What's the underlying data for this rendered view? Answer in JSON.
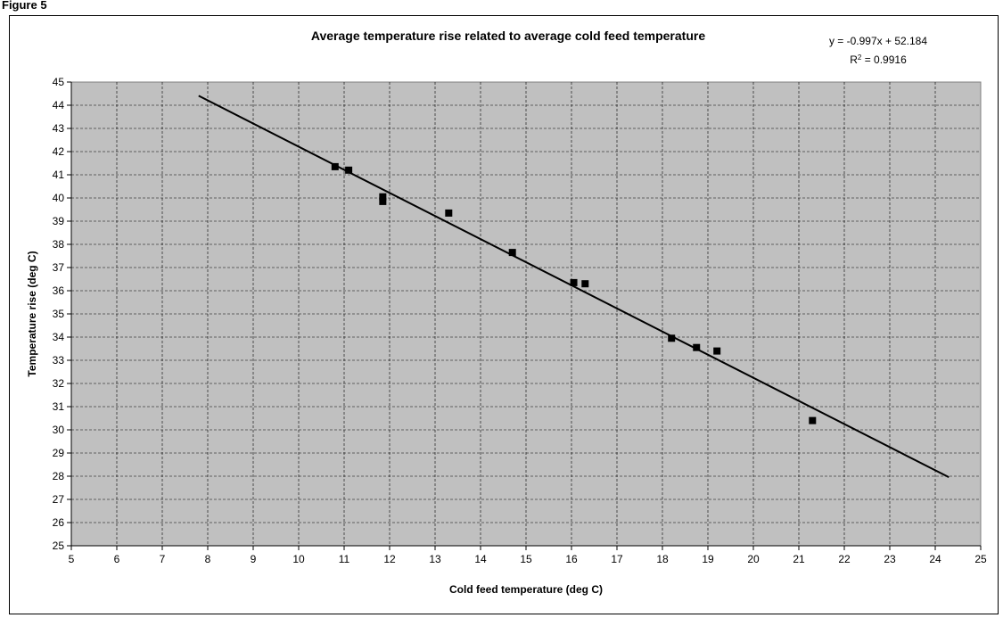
{
  "figure": {
    "label": "Figure 5"
  },
  "chart_data": {
    "type": "scatter",
    "title": "Average temperature rise related to average cold feed temperature",
    "xlabel": "Cold feed temperature (deg C)",
    "ylabel": "Temperature rise (deg C)",
    "xlim": [
      5,
      25
    ],
    "ylim": [
      25,
      45
    ],
    "x_ticks": [
      5,
      6,
      7,
      8,
      9,
      10,
      11,
      12,
      13,
      14,
      15,
      16,
      17,
      18,
      19,
      20,
      21,
      22,
      23,
      24,
      25
    ],
    "y_ticks": [
      25,
      26,
      27,
      28,
      29,
      30,
      31,
      32,
      33,
      34,
      35,
      36,
      37,
      38,
      39,
      40,
      41,
      42,
      43,
      44,
      45
    ],
    "grid": true,
    "plot_background": "#c0c0c0",
    "gridline_style": "dashed",
    "series": [
      {
        "marker": "square",
        "color": "#000000",
        "x": [
          10.8,
          11.1,
          11.85,
          11.85,
          13.3,
          14.7,
          16.05,
          16.3,
          18.2,
          18.75,
          19.2,
          21.3
        ],
        "y": [
          41.35,
          41.2,
          40.05,
          39.85,
          39.35,
          37.65,
          36.35,
          36.3,
          33.95,
          33.55,
          33.4,
          30.4
        ]
      }
    ],
    "trendline": {
      "type": "linear",
      "slope": -0.997,
      "intercept": 52.184,
      "x_range": [
        7.8,
        24.3
      ],
      "equation_text": "y = -0.997x + 52.184",
      "r2_prefix": "R",
      "r2_sup": "2",
      "r2_value_text": " = 0.9916"
    }
  }
}
